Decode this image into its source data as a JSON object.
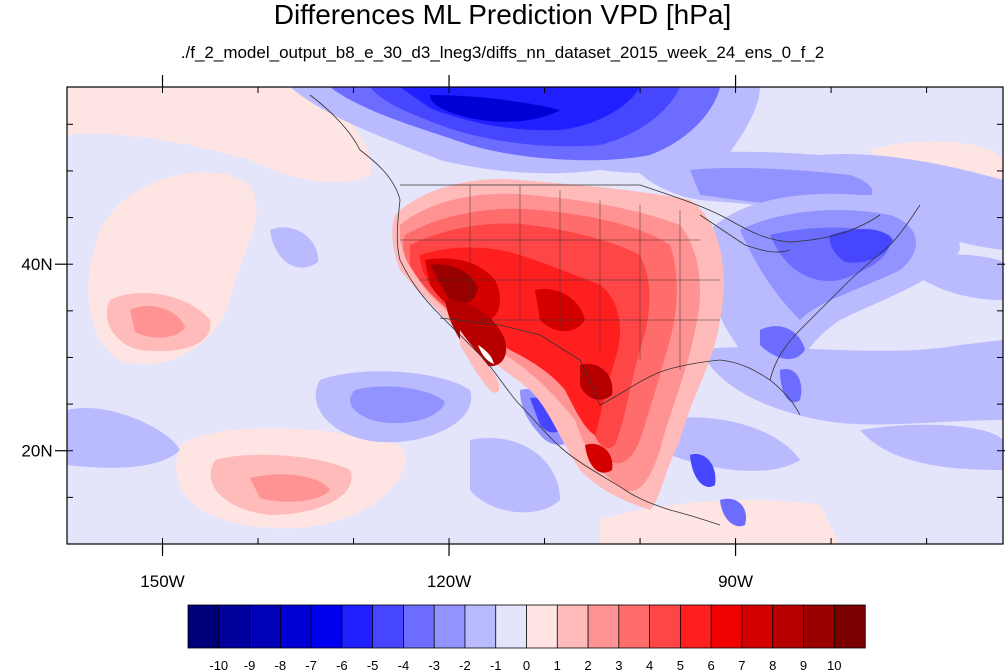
{
  "title": "Differences ML Prediction VPD [hPa]",
  "subtitle": "./f_2_model_output_b8_e_30_d3_lneg3/diffs_nn_dataset_2015_week_24_ens_0_f_2",
  "map": {
    "projection": "cylindrical equidistant",
    "lon_range": [
      -160,
      -62
    ],
    "lat_range": [
      10,
      59
    ],
    "x_ticks": [
      {
        "lon": -150,
        "label": "150W"
      },
      {
        "lon": -120,
        "label": "120W"
      },
      {
        "lon": -90,
        "label": "90W"
      }
    ],
    "y_ticks": [
      {
        "lat": 40,
        "label": "40N"
      },
      {
        "lat": 20,
        "label": "20N"
      }
    ]
  },
  "colorbar": {
    "levels": [
      "-10",
      "-9",
      "-8",
      "-7",
      "-6",
      "-5",
      "-4",
      "-3",
      "-2",
      "-1",
      "0",
      "1",
      "2",
      "3",
      "4",
      "5",
      "6",
      "7",
      "8",
      "9",
      "10"
    ],
    "colors": [
      "#00007a",
      "#00009a",
      "#0000b6",
      "#0000d4",
      "#0000f0",
      "#1f1fff",
      "#4646ff",
      "#6c6cff",
      "#9393ff",
      "#babaff",
      "#e4e4fb",
      "#ffe4e4",
      "#ffbaba",
      "#ff9393",
      "#ff6c6c",
      "#ff4646",
      "#ff1f1f",
      "#f00000",
      "#d40000",
      "#b60000",
      "#9a0000",
      "#7a0000"
    ]
  },
  "field_description": "VPD difference (hPa): strong positive anomalies over western/southwestern US and Mexico, negative anomalies over western Canada and the northeastern US, weak mixed values over the Pacific"
}
